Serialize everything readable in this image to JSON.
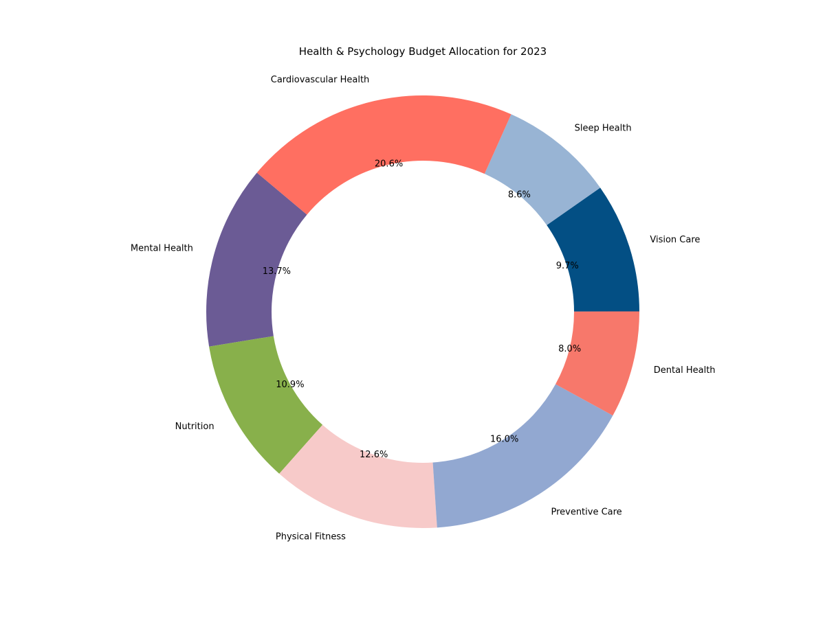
{
  "chart_data": {
    "type": "pie",
    "variant": "donut",
    "title": "Health & Psychology Budget Allocation for 2023",
    "slices": [
      {
        "label": "Mental Health",
        "value": 13.7,
        "pct_label": "13.7%",
        "color": "#6b5b95"
      },
      {
        "label": "Nutrition",
        "value": 10.9,
        "pct_label": "10.9%",
        "color": "#88b04b"
      },
      {
        "label": "Physical Fitness",
        "value": 12.6,
        "pct_label": "12.6%",
        "color": "#f7cac9"
      },
      {
        "label": "Preventive Care",
        "value": 16.0,
        "pct_label": "16.0%",
        "color": "#92a8d1"
      },
      {
        "label": "Dental Health",
        "value": 8.0,
        "pct_label": "8.0%",
        "color": "#f7786b"
      },
      {
        "label": "Vision Care",
        "value": 9.7,
        "pct_label": "9.7%",
        "color": "#034f84"
      },
      {
        "label": "Sleep Health",
        "value": 8.6,
        "pct_label": "8.6%",
        "color": "#98b4d4"
      },
      {
        "label": "Cardiovascular Health",
        "value": 20.6,
        "pct_label": "20.6%",
        "color": "#ff6f61"
      }
    ]
  }
}
